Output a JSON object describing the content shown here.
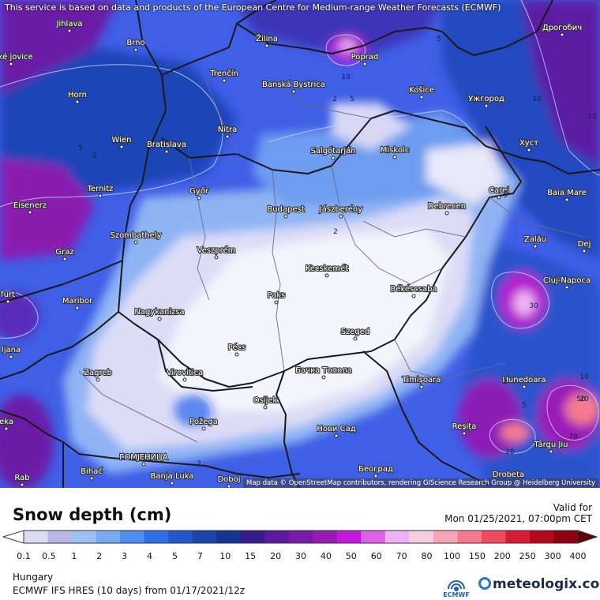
{
  "map": {
    "top_notice": "This service is based on data and products of the European Centre for Medium-range Weather Forecasts (ECMWF)",
    "attribution": "Map data © OpenStreetMap contributors, rendering GIScience Research Group @ Heidelberg University",
    "cities": [
      {
        "name": "Jihlava"
      },
      {
        "name": "Brno"
      },
      {
        "name": "Žilina"
      },
      {
        "name": "Poprad"
      },
      {
        "name": "Дрогобич"
      },
      {
        "name": "Trenčín"
      },
      {
        "name": "Banská Bystrica"
      },
      {
        "name": "Košice"
      },
      {
        "name": "Ужгород"
      },
      {
        "name": "Horn"
      },
      {
        "name": "Nitra"
      },
      {
        "name": "Wien"
      },
      {
        "name": "Bratislava"
      },
      {
        "name": "Salgótarján"
      },
      {
        "name": "Miskolc"
      },
      {
        "name": "Хуст"
      },
      {
        "name": "Ternitz"
      },
      {
        "name": "Győr"
      },
      {
        "name": "Carei"
      },
      {
        "name": "Baia Mare"
      },
      {
        "name": "Eisenerz"
      },
      {
        "name": "Budapest"
      },
      {
        "name": "Jászberény"
      },
      {
        "name": "Debrecen"
      },
      {
        "name": "Szombathely"
      },
      {
        "name": "Zalău"
      },
      {
        "name": "Dej"
      },
      {
        "name": "Graz"
      },
      {
        "name": "Veszprém"
      },
      {
        "name": "Kecskemét"
      },
      {
        "name": "Cluj-Napoca"
      },
      {
        "name": "Maribor"
      },
      {
        "name": "Paks"
      },
      {
        "name": "Békéscsaba"
      },
      {
        "name": "Nagykanizsa"
      },
      {
        "name": "Szeged"
      },
      {
        "name": "Pécs"
      },
      {
        "name": "Zagreb"
      },
      {
        "name": "Virovitica"
      },
      {
        "name": "Бачка Топола"
      },
      {
        "name": "Hunedoara"
      },
      {
        "name": "Osijek"
      },
      {
        "name": "Timișoara"
      },
      {
        "name": "Požega"
      },
      {
        "name": "Нови Сад"
      },
      {
        "name": "Reșița"
      },
      {
        "name": "Târgu Jiu"
      },
      {
        "name": "ГОМЈЕНИЦА"
      },
      {
        "name": "Bihać"
      },
      {
        "name": "Banja Luka"
      },
      {
        "name": "Doboj"
      },
      {
        "name": "Београд"
      },
      {
        "name": "Drobeta"
      },
      {
        "name": "ljana"
      },
      {
        "name": "furt"
      },
      {
        "name": "eka"
      },
      {
        "name": "Rab"
      },
      {
        "name": "eské jovice"
      }
    ],
    "contour_labels": [
      "5",
      "10",
      "2",
      "5",
      "2",
      "5",
      "2",
      "10",
      "10",
      "5",
      "2",
      "10",
      "20",
      "50",
      "70",
      "5",
      "20",
      "30",
      "2"
    ]
  },
  "legend": {
    "title": "Snow depth (cm)",
    "valid_label": "Valid for",
    "valid_date": "Mon 01/25/2021, 07:00pm CET",
    "ticks": [
      "0.1",
      "0.5",
      "1",
      "2",
      "3",
      "4",
      "5",
      "7",
      "10",
      "15",
      "20",
      "30",
      "40",
      "50",
      "60",
      "70",
      "80",
      "100",
      "150",
      "200",
      "250",
      "300",
      "400"
    ],
    "colors": [
      "#dcdcf4",
      "#b8b8e4",
      "#9dc1f5",
      "#78aaf0",
      "#4f8ff0",
      "#2f6fe6",
      "#2257c8",
      "#1a44a8",
      "#143591",
      "#3a1b8e",
      "#5a1a9c",
      "#7a1aa8",
      "#9a1ab8",
      "#c21ad8",
      "#dc62e8",
      "#eeb2f2",
      "#f4cde0",
      "#f6a4b8",
      "#f57a8e",
      "#ef4a60",
      "#d81c36",
      "#b3081e",
      "#8c0012",
      "#5e000a"
    ]
  },
  "footer": {
    "region": "Hungary",
    "model_prefix": "ECMWF IFS HRES (10 days) from",
    "model_date": "01/17/2021/12z",
    "ecmwf_text": "ECMWF",
    "brand": "meteologix.com"
  }
}
